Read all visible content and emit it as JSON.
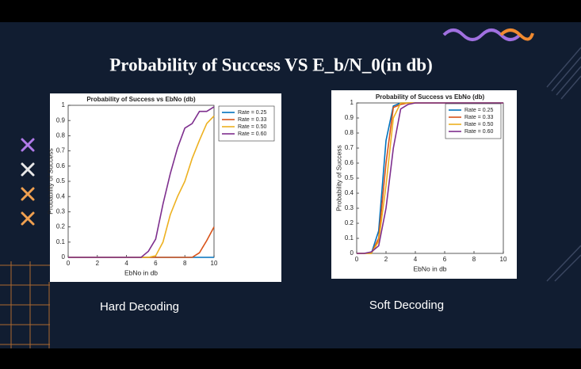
{
  "slide": {
    "title": "Probability of Success VS E_b/N_0(in db)",
    "captions": [
      "Hard Decoding",
      "Soft Decoding"
    ]
  },
  "chart_data": [
    {
      "type": "line",
      "title": "Probability of Success vs EbNo (db)",
      "x_label": "EbNo in db",
      "y_label": "Probability of Success",
      "x": [
        0,
        0.5,
        1,
        1.5,
        2,
        2.5,
        3,
        3.5,
        4,
        4.5,
        5,
        5.5,
        6,
        6.5,
        7,
        7.5,
        8,
        8.5,
        9,
        9.5,
        10
      ],
      "xlim": [
        0,
        10
      ],
      "xticks": [
        0,
        2,
        4,
        6,
        8,
        10
      ],
      "ylim": [
        0,
        1
      ],
      "yticks": [
        0,
        0.1,
        0.2,
        0.3,
        0.4,
        0.5,
        0.6,
        0.7,
        0.8,
        0.9,
        1
      ],
      "legend": "outside-right",
      "series": [
        {
          "name": "Rate = 0.25",
          "color": "#0072bd",
          "values": [
            0,
            0,
            0,
            0,
            0,
            0,
            0,
            0,
            0,
            0,
            0,
            0,
            0,
            0,
            0,
            0,
            0,
            0,
            0,
            0,
            0
          ]
        },
        {
          "name": "Rate = 0.33",
          "color": "#d95319",
          "values": [
            0,
            0,
            0,
            0,
            0,
            0,
            0,
            0,
            0,
            0,
            0,
            0,
            0,
            0,
            0,
            0,
            0,
            0,
            0.03,
            0.11,
            0.2
          ]
        },
        {
          "name": "Rate = 0.50",
          "color": "#edb120",
          "values": [
            0,
            0,
            0,
            0,
            0,
            0,
            0,
            0,
            0,
            0,
            0,
            0,
            0.01,
            0.1,
            0.28,
            0.4,
            0.5,
            0.65,
            0.77,
            0.88,
            0.93
          ]
        },
        {
          "name": "Rate = 0.60",
          "color": "#7e2f8e",
          "values": [
            0,
            0,
            0,
            0,
            0,
            0,
            0,
            0,
            0,
            0,
            0,
            0.04,
            0.12,
            0.35,
            0.55,
            0.72,
            0.85,
            0.88,
            0.96,
            0.96,
            0.99
          ]
        }
      ]
    },
    {
      "type": "line",
      "title": "Probability of Success vs EbNo (db)",
      "x_label": "EbNo in db",
      "y_label": "Probability of Success",
      "x": [
        0,
        0.5,
        1,
        1.5,
        2,
        2.5,
        3,
        3.5,
        4,
        4.5,
        5,
        5.5,
        6,
        6.5,
        7,
        7.5,
        8,
        8.5,
        9,
        9.5,
        10
      ],
      "xlim": [
        0,
        10
      ],
      "xticks": [
        0,
        2,
        4,
        6,
        8,
        10
      ],
      "ylim": [
        0,
        1
      ],
      "yticks": [
        0,
        0.1,
        0.2,
        0.3,
        0.4,
        0.5,
        0.6,
        0.7,
        0.8,
        0.9,
        1
      ],
      "legend": "upper-right",
      "series": [
        {
          "name": "Rate = 0.25",
          "color": "#0072bd",
          "values": [
            0,
            0,
            0,
            0.15,
            0.75,
            0.98,
            1,
            1,
            1,
            1,
            1,
            1,
            1,
            1,
            1,
            1,
            1,
            1,
            1,
            1,
            1
          ]
        },
        {
          "name": "Rate = 0.33",
          "color": "#d95319",
          "values": [
            0,
            0,
            0,
            0.1,
            0.6,
            0.97,
            0.99,
            1,
            1,
            1,
            1,
            1,
            1,
            1,
            1,
            1,
            1,
            1,
            1,
            1,
            1
          ]
        },
        {
          "name": "Rate = 0.50",
          "color": "#edb120",
          "values": [
            0,
            0,
            0,
            0.08,
            0.45,
            0.9,
            1,
            1,
            1,
            1,
            1,
            1,
            1,
            1,
            1,
            1,
            1,
            1,
            1,
            1,
            1
          ]
        },
        {
          "name": "Rate = 0.60",
          "color": "#7e2f8e",
          "values": [
            0,
            0,
            0.01,
            0.05,
            0.3,
            0.7,
            0.96,
            0.99,
            1,
            1,
            1,
            1,
            1,
            1,
            1,
            1,
            1,
            1,
            1,
            1,
            1
          ]
        }
      ]
    }
  ]
}
